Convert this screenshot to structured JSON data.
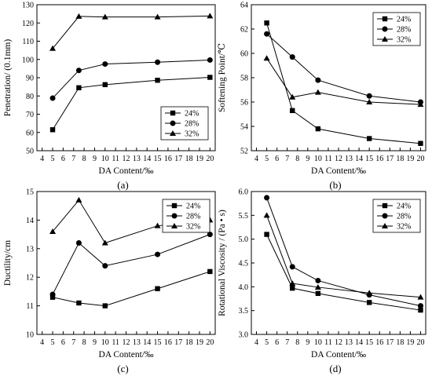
{
  "chart_data": [
    {
      "panel_label": "(a)",
      "type": "line",
      "xlabel": "DA Content/‰",
      "ylabel": "Penetration/ (0.1mm)",
      "xlim": [
        3.5,
        20.5
      ],
      "xticks": [
        4,
        5,
        6,
        7,
        8,
        9,
        10,
        11,
        12,
        13,
        14,
        15,
        16,
        17,
        18,
        19,
        20
      ],
      "ylim": [
        50,
        130
      ],
      "yticks": [
        50,
        60,
        70,
        80,
        90,
        100,
        110,
        120,
        130
      ],
      "x": [
        5,
        7.5,
        10,
        15,
        20
      ],
      "legend_position": "bottom-right",
      "series": [
        {
          "name": "24%",
          "marker": "square",
          "values": [
            61.5,
            84.5,
            86.2,
            88.6,
            90.2
          ]
        },
        {
          "name": "28%",
          "marker": "circle",
          "values": [
            78.8,
            94.0,
            97.5,
            98.5,
            99.7
          ]
        },
        {
          "name": "32%",
          "marker": "triangle",
          "values": [
            106.0,
            123.6,
            123.3,
            123.3,
            123.8
          ]
        }
      ]
    },
    {
      "panel_label": "(b)",
      "type": "line",
      "xlabel": "DA Content/‰",
      "ylabel": "Softening Point/℃",
      "xlim": [
        3.5,
        20.5
      ],
      "xticks": [
        4,
        5,
        6,
        7,
        8,
        9,
        10,
        11,
        12,
        13,
        14,
        15,
        16,
        17,
        18,
        19,
        20
      ],
      "ylim": [
        52,
        64
      ],
      "yticks": [
        52,
        54,
        56,
        58,
        60,
        62,
        64
      ],
      "x": [
        5,
        7.5,
        10,
        15,
        20
      ],
      "legend_position": "top-right",
      "series": [
        {
          "name": "24%",
          "marker": "square",
          "values": [
            62.5,
            55.3,
            53.8,
            53.0,
            52.6
          ]
        },
        {
          "name": "28%",
          "marker": "circle",
          "values": [
            61.6,
            59.7,
            57.8,
            56.5,
            56.0
          ]
        },
        {
          "name": "32%",
          "marker": "triangle",
          "values": [
            59.6,
            56.4,
            56.8,
            56.0,
            55.8
          ]
        }
      ]
    },
    {
      "panel_label": "(c)",
      "type": "line",
      "xlabel": "DA Content/‰",
      "ylabel": "Ductility/cm",
      "xlim": [
        3.5,
        20.5
      ],
      "xticks": [
        4,
        5,
        6,
        7,
        8,
        9,
        10,
        11,
        12,
        13,
        14,
        15,
        16,
        17,
        18,
        19,
        20
      ],
      "ylim": [
        10,
        15
      ],
      "yticks": [
        10,
        11,
        12,
        13,
        14,
        15
      ],
      "x": [
        5,
        7.5,
        10,
        15,
        20
      ],
      "legend_position": "top-right",
      "series": [
        {
          "name": "24%",
          "marker": "square",
          "values": [
            11.3,
            11.1,
            11.0,
            11.6,
            12.2
          ]
        },
        {
          "name": "28%",
          "marker": "circle",
          "values": [
            11.4,
            13.2,
            12.4,
            12.8,
            13.5
          ]
        },
        {
          "name": "32%",
          "marker": "triangle",
          "values": [
            13.6,
            14.7,
            13.2,
            13.8,
            14.0
          ]
        }
      ]
    },
    {
      "panel_label": "(d)",
      "type": "line",
      "xlabel": "DA Content/‰",
      "ylabel": "Rotational Viscosity / (Pa • s)",
      "xlim": [
        3.5,
        20.5
      ],
      "xticks": [
        4,
        5,
        6,
        7,
        8,
        9,
        10,
        11,
        12,
        13,
        14,
        15,
        16,
        17,
        18,
        19,
        20
      ],
      "ylim": [
        3.0,
        6.0
      ],
      "yticks": [
        3.0,
        3.5,
        4.0,
        4.5,
        5.0,
        5.5,
        6.0
      ],
      "x": [
        5,
        7.5,
        10,
        15,
        20
      ],
      "legend_position": "top-right",
      "series": [
        {
          "name": "24%",
          "marker": "square",
          "values": [
            5.1,
            3.97,
            3.86,
            3.67,
            3.51
          ]
        },
        {
          "name": "28%",
          "marker": "circle",
          "values": [
            5.87,
            4.42,
            4.13,
            3.83,
            3.6
          ]
        },
        {
          "name": "32%",
          "marker": "triangle",
          "values": [
            5.5,
            4.07,
            3.99,
            3.87,
            3.78
          ]
        }
      ]
    }
  ]
}
